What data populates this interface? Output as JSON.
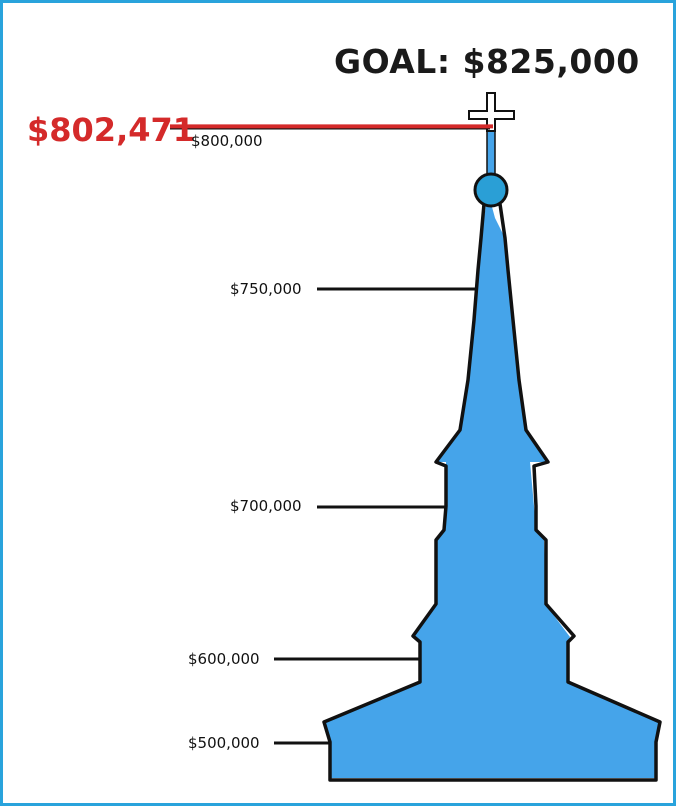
{
  "chart_data": {
    "type": "thermometer",
    "title": "GOAL: $825,000",
    "goal_value": 825000,
    "current_value": 802471,
    "current_label": "$802,471",
    "ticks": [
      {
        "value": 800000,
        "label": "$800,000"
      },
      {
        "value": 750000,
        "label": "$750,000"
      },
      {
        "value": 700000,
        "label": "$700,000"
      },
      {
        "value": 600000,
        "label": "$600,000"
      },
      {
        "value": 500000,
        "label": "$500,000"
      }
    ],
    "colors": {
      "fill": "#45a4ea",
      "outline": "#111111",
      "current_marker": "#d42a2a",
      "border": "#29a3dc",
      "ball": "#2a9fd6"
    }
  }
}
